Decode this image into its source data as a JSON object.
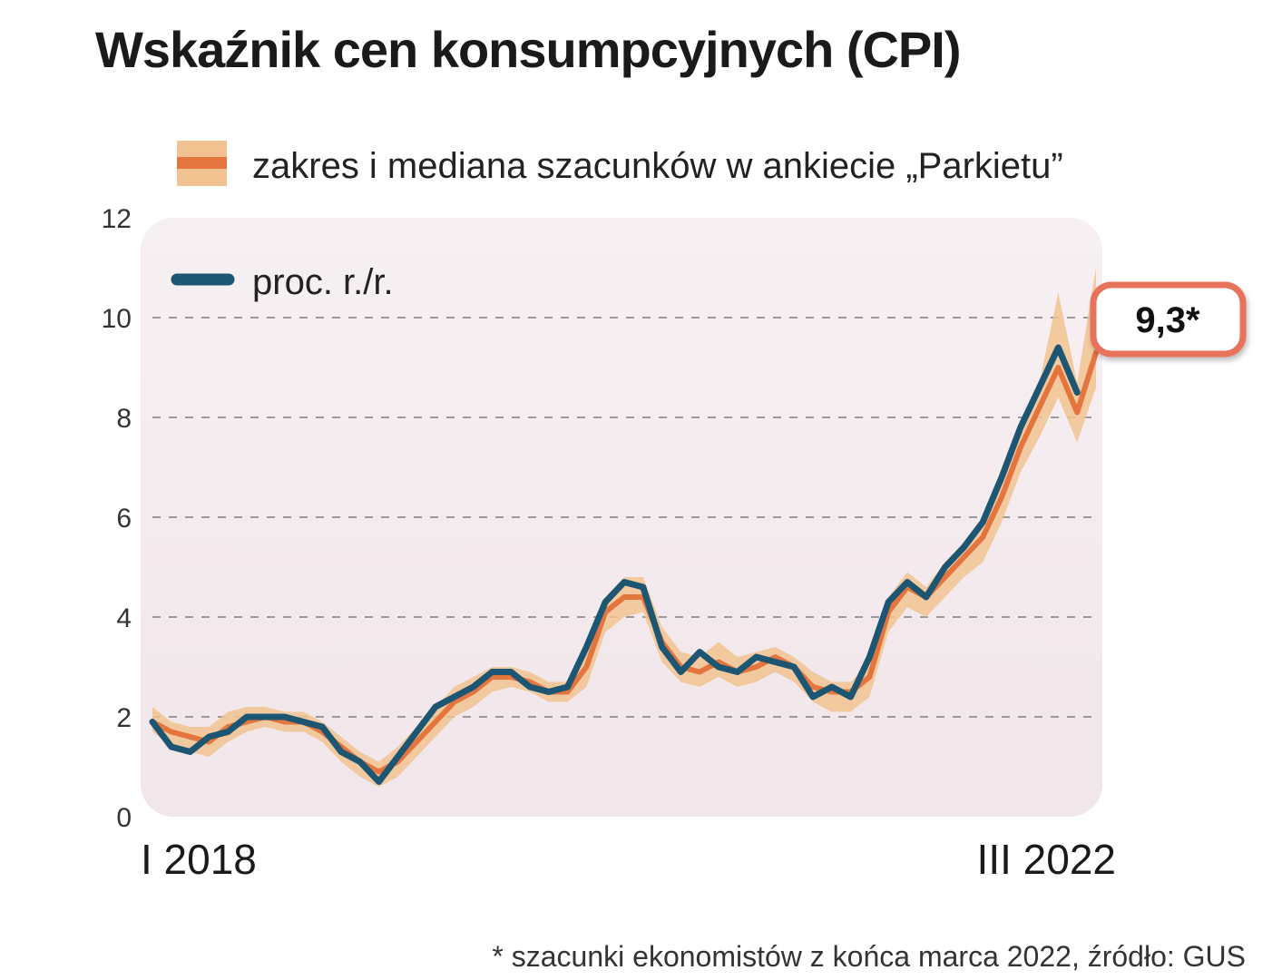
{
  "chart_data": {
    "type": "line",
    "title": "Wskaźnik cen konsumpcyjnych (CPI)",
    "xlabel": "",
    "ylabel": "",
    "ylim": [
      0,
      12
    ],
    "yticks": [
      0,
      2,
      4,
      6,
      8,
      10,
      12
    ],
    "x_tick_labels": [
      {
        "label": "I 2018",
        "index": 0
      },
      {
        "label": "III 2022",
        "index": 50
      }
    ],
    "grid": "horizontal dashed",
    "legend": [
      {
        "label": "zakres i mediana szacunków w ankiecie „Parkietu”",
        "placement": "top"
      },
      {
        "label": "proc. r./r.",
        "placement": "top-left"
      }
    ],
    "series": [
      {
        "name": "proc. r./r.",
        "color": "#1d5673",
        "values": [
          1.9,
          1.4,
          1.3,
          1.6,
          1.7,
          2.0,
          2.0,
          2.0,
          1.9,
          1.8,
          1.3,
          1.1,
          0.7,
          1.2,
          1.7,
          2.2,
          2.4,
          2.6,
          2.9,
          2.9,
          2.6,
          2.5,
          2.6,
          3.4,
          4.3,
          4.7,
          4.6,
          3.4,
          2.9,
          3.3,
          3.0,
          2.9,
          3.2,
          3.1,
          3.0,
          2.4,
          2.6,
          2.4,
          3.2,
          4.3,
          4.7,
          4.4,
          5.0,
          5.4,
          5.9,
          6.8,
          7.8,
          8.6,
          9.4,
          8.5
        ]
      },
      {
        "name": "mediana szacunków",
        "color": "#e5753f",
        "values": [
          1.9,
          1.7,
          1.6,
          1.5,
          1.8,
          1.9,
          2.0,
          1.9,
          1.9,
          1.7,
          1.4,
          1.1,
          0.9,
          1.1,
          1.5,
          1.9,
          2.3,
          2.5,
          2.8,
          2.8,
          2.7,
          2.5,
          2.5,
          3.0,
          4.1,
          4.4,
          4.4,
          3.5,
          3.0,
          2.9,
          3.1,
          2.9,
          3.0,
          3.2,
          3.0,
          2.6,
          2.5,
          2.5,
          2.8,
          4.1,
          4.6,
          4.4,
          4.8,
          5.2,
          5.6,
          6.4,
          7.4,
          8.2,
          9.0,
          8.1,
          9.3
        ]
      }
    ],
    "band": {
      "name": "zakres szacunków",
      "color": "#f2c391",
      "low": [
        1.7,
        1.4,
        1.3,
        1.2,
        1.5,
        1.7,
        1.8,
        1.7,
        1.7,
        1.5,
        1.1,
        0.8,
        0.6,
        0.8,
        1.2,
        1.6,
        2.0,
        2.2,
        2.5,
        2.6,
        2.5,
        2.3,
        2.3,
        2.6,
        3.7,
        4.0,
        4.1,
        3.1,
        2.7,
        2.6,
        2.8,
        2.6,
        2.7,
        2.9,
        2.7,
        2.3,
        2.1,
        2.1,
        2.4,
        3.7,
        4.2,
        4.0,
        4.4,
        4.8,
        5.1,
        5.9,
        6.9,
        7.6,
        8.4,
        7.5,
        8.6
      ],
      "high": [
        2.2,
        1.9,
        1.8,
        1.8,
        2.1,
        2.2,
        2.2,
        2.1,
        2.1,
        1.9,
        1.6,
        1.3,
        1.1,
        1.4,
        1.8,
        2.2,
        2.6,
        2.8,
        3.0,
        3.0,
        2.9,
        2.7,
        2.7,
        3.3,
        4.4,
        4.8,
        4.8,
        3.8,
        3.3,
        3.2,
        3.5,
        3.2,
        3.3,
        3.4,
        3.2,
        2.9,
        2.7,
        2.7,
        3.1,
        4.4,
        4.9,
        4.6,
        5.1,
        5.5,
        6.0,
        6.8,
        7.9,
        8.7,
        10.5,
        8.7,
        11.0
      ]
    },
    "annotations": [
      {
        "text": "9,3*",
        "index": 50,
        "value": 9.3
      }
    ],
    "footnote": "* szacunki ekonomistów z końca marca 2022, źródło: GUS"
  }
}
